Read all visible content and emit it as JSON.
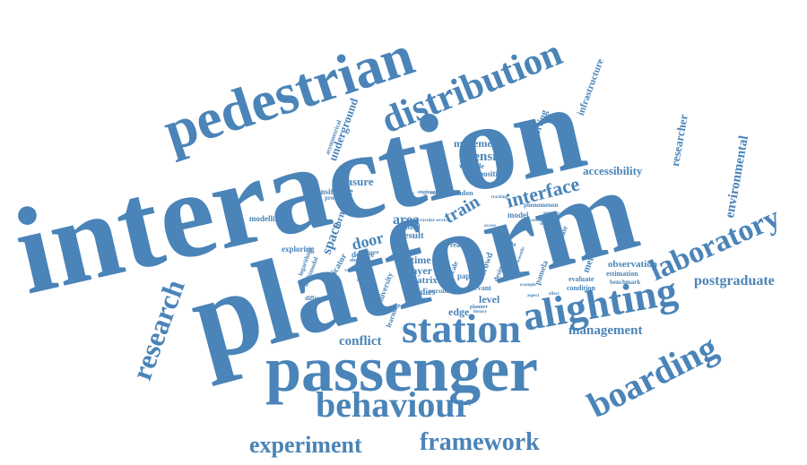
{
  "accent_color": "#4a84b8",
  "words": [
    "interaction",
    "platform",
    "passenger",
    "pedestrian",
    "station",
    "alighting",
    "distribution",
    "behaviour",
    "boarding",
    "laboratory",
    "research",
    "framework",
    "experiment",
    "interface",
    "postgraduate",
    "management",
    "environmental",
    "conflict",
    "accessibility",
    "researcher",
    "density",
    "measure",
    "underground",
    "door",
    "area",
    "space",
    "train",
    "time",
    "layer",
    "matrix",
    "edge",
    "level",
    "movement",
    "supporting",
    "infrastructure",
    "observation",
    "method",
    "result",
    "formation",
    "transition",
    "modelling",
    "exploring",
    "degree",
    "indicator",
    "university",
    "learning",
    "model",
    "london",
    "position",
    "variable",
    "problem",
    "asymmetrical",
    "multimodal",
    "logarithmic",
    "difference",
    "condition",
    "estimation",
    "evaluate",
    "benchmark",
    "estimate",
    "crowd",
    "paper",
    "real",
    "design",
    "phenomenon",
    "simple",
    "board",
    "scale",
    "studies",
    "pamela",
    "relevant",
    "pursuit",
    "observed",
    "engineer",
    "planner",
    "circular",
    "service",
    "scenario",
    "designer",
    "suitable",
    "fixed",
    "different",
    "history",
    "aspect",
    "scientific",
    "various",
    "carriage",
    "reference",
    "tracking",
    "example",
    "system",
    "access",
    "journey",
    "effect"
  ]
}
